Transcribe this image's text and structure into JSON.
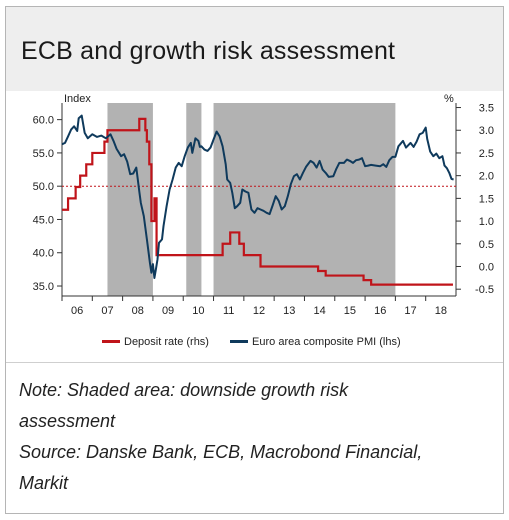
{
  "title": "ECB and growth risk assessment",
  "notes": {
    "line1": "Note: Shaded area: downside growth risk",
    "line2": "assessment",
    "line3": "Source: Danske Bank, ECB, Macrobond Financial,",
    "line4": "Markit"
  },
  "colors": {
    "deposit": "#c0141a",
    "pmi": "#0f3a5c",
    "shade": "#b2b2b2",
    "refline": "#c0141a"
  },
  "chart_data": {
    "type": "line",
    "x_unit": "year",
    "x_ticks": [
      "06",
      "07",
      "08",
      "09",
      "10",
      "11",
      "12",
      "13",
      "14",
      "15",
      "16",
      "17",
      "18"
    ],
    "left_axis": {
      "label": "Index",
      "ylim": [
        33.5,
        62.5
      ],
      "ticks": [
        "60.0",
        "55.0",
        "50.0",
        "45.0",
        "40.0",
        "35.0"
      ]
    },
    "right_axis": {
      "label": "%",
      "ylim": [
        -0.65,
        3.6
      ],
      "ticks": [
        "3.5",
        "3.0",
        "2.5",
        "2.0",
        "1.5",
        "1.0",
        "0.5",
        "0.0",
        "-0.5"
      ]
    },
    "reference_line": {
      "axis": "left",
      "value": 50
    },
    "shaded_periods": [
      [
        2007.5,
        2009.0
      ],
      [
        2010.1,
        2010.6
      ],
      [
        2011.0,
        2017.0
      ]
    ],
    "series": [
      {
        "name": "Deposit rate (rhs)",
        "axis": "right",
        "points": [
          [
            2006.0,
            1.25
          ],
          [
            2006.2,
            1.5
          ],
          [
            2006.45,
            1.75
          ],
          [
            2006.6,
            2.0
          ],
          [
            2006.8,
            2.25
          ],
          [
            2007.0,
            2.5
          ],
          [
            2007.4,
            2.75
          ],
          [
            2007.5,
            3.0
          ],
          [
            2008.55,
            3.25
          ],
          [
            2008.75,
            3.0
          ],
          [
            2008.8,
            2.75
          ],
          [
            2008.88,
            2.25
          ],
          [
            2008.95,
            1.0
          ],
          [
            2009.05,
            1.5
          ],
          [
            2009.12,
            0.25
          ],
          [
            2011.3,
            0.5
          ],
          [
            2011.55,
            0.75
          ],
          [
            2011.85,
            0.5
          ],
          [
            2012.0,
            0.25
          ],
          [
            2012.55,
            0.0
          ],
          [
            2014.45,
            -0.1
          ],
          [
            2014.7,
            -0.2
          ],
          [
            2015.95,
            -0.3
          ],
          [
            2016.2,
            -0.4
          ],
          [
            2018.9,
            -0.4
          ]
        ]
      },
      {
        "name": "Euro area composite PMI (lhs)",
        "axis": "left",
        "points": [
          [
            2006.0,
            56.3
          ],
          [
            2006.1,
            56.5
          ],
          [
            2006.2,
            57.5
          ],
          [
            2006.3,
            58.5
          ],
          [
            2006.4,
            59.0
          ],
          [
            2006.5,
            58.3
          ],
          [
            2006.55,
            60.2
          ],
          [
            2006.65,
            60.6
          ],
          [
            2006.75,
            58.0
          ],
          [
            2006.85,
            57.2
          ],
          [
            2007.0,
            57.8
          ],
          [
            2007.15,
            57.4
          ],
          [
            2007.3,
            57.6
          ],
          [
            2007.45,
            57.2
          ],
          [
            2007.6,
            57.8
          ],
          [
            2007.7,
            56.8
          ],
          [
            2007.8,
            55.6
          ],
          [
            2007.95,
            54.5
          ],
          [
            2008.05,
            54.8
          ],
          [
            2008.15,
            53.7
          ],
          [
            2008.25,
            51.8
          ],
          [
            2008.35,
            51.9
          ],
          [
            2008.45,
            52.8
          ],
          [
            2008.55,
            49.2
          ],
          [
            2008.6,
            47.5
          ],
          [
            2008.7,
            45.5
          ],
          [
            2008.8,
            42.0
          ],
          [
            2008.9,
            38.5
          ],
          [
            2008.95,
            37.0
          ],
          [
            2009.0,
            38.3
          ],
          [
            2009.05,
            36.2
          ],
          [
            2009.1,
            37.6
          ],
          [
            2009.15,
            39.0
          ],
          [
            2009.2,
            41.5
          ],
          [
            2009.3,
            42.0
          ],
          [
            2009.35,
            44.0
          ],
          [
            2009.45,
            47.0
          ],
          [
            2009.55,
            49.5
          ],
          [
            2009.65,
            51.0
          ],
          [
            2009.75,
            52.8
          ],
          [
            2009.85,
            53.5
          ],
          [
            2009.95,
            53.0
          ],
          [
            2010.05,
            54.5
          ],
          [
            2010.15,
            55.8
          ],
          [
            2010.25,
            56.5
          ],
          [
            2010.3,
            55.0
          ],
          [
            2010.4,
            57.2
          ],
          [
            2010.5,
            56.8
          ],
          [
            2010.55,
            55.9
          ],
          [
            2010.6,
            56.0
          ],
          [
            2010.7,
            55.5
          ],
          [
            2010.8,
            55.3
          ],
          [
            2010.9,
            55.8
          ],
          [
            2011.0,
            57.0
          ],
          [
            2011.1,
            58.2
          ],
          [
            2011.2,
            57.5
          ],
          [
            2011.3,
            56.0
          ],
          [
            2011.4,
            53.3
          ],
          [
            2011.45,
            51.0
          ],
          [
            2011.55,
            50.5
          ],
          [
            2011.62,
            49.0
          ],
          [
            2011.7,
            46.7
          ],
          [
            2011.78,
            47.0
          ],
          [
            2011.88,
            47.5
          ],
          [
            2011.95,
            49.5
          ],
          [
            2012.05,
            49.2
          ],
          [
            2012.15,
            49.0
          ],
          [
            2012.25,
            46.5
          ],
          [
            2012.35,
            46.0
          ],
          [
            2012.45,
            46.7
          ],
          [
            2012.55,
            46.5
          ],
          [
            2012.65,
            46.3
          ],
          [
            2012.75,
            46.0
          ],
          [
            2012.85,
            45.8
          ],
          [
            2012.95,
            47.1
          ],
          [
            2013.05,
            48.5
          ],
          [
            2013.15,
            47.8
          ],
          [
            2013.25,
            46.5
          ],
          [
            2013.35,
            47.0
          ],
          [
            2013.45,
            48.5
          ],
          [
            2013.55,
            50.3
          ],
          [
            2013.65,
            51.5
          ],
          [
            2013.75,
            51.8
          ],
          [
            2013.85,
            51.0
          ],
          [
            2013.95,
            52.0
          ],
          [
            2014.05,
            52.9
          ],
          [
            2014.2,
            53.8
          ],
          [
            2014.3,
            53.5
          ],
          [
            2014.4,
            52.8
          ],
          [
            2014.5,
            53.8
          ],
          [
            2014.6,
            52.5
          ],
          [
            2014.7,
            52.0
          ],
          [
            2014.8,
            51.4
          ],
          [
            2014.95,
            51.5
          ],
          [
            2015.05,
            52.6
          ],
          [
            2015.15,
            53.5
          ],
          [
            2015.3,
            53.5
          ],
          [
            2015.4,
            54.0
          ],
          [
            2015.5,
            53.8
          ],
          [
            2015.6,
            53.5
          ],
          [
            2015.7,
            53.9
          ],
          [
            2015.8,
            54.0
          ],
          [
            2015.9,
            54.2
          ],
          [
            2016.0,
            53.0
          ],
          [
            2016.1,
            53.1
          ],
          [
            2016.2,
            53.2
          ],
          [
            2016.35,
            53.1
          ],
          [
            2016.5,
            53.0
          ],
          [
            2016.6,
            53.3
          ],
          [
            2016.7,
            52.9
          ],
          [
            2016.8,
            53.9
          ],
          [
            2016.9,
            54.4
          ],
          [
            2017.0,
            54.4
          ],
          [
            2017.1,
            56.0
          ],
          [
            2017.25,
            56.8
          ],
          [
            2017.35,
            55.8
          ],
          [
            2017.5,
            56.5
          ],
          [
            2017.6,
            55.9
          ],
          [
            2017.7,
            56.7
          ],
          [
            2017.8,
            57.8
          ],
          [
            2017.9,
            58.0
          ],
          [
            2018.0,
            58.8
          ],
          [
            2018.05,
            57.1
          ],
          [
            2018.15,
            55.2
          ],
          [
            2018.25,
            54.5
          ],
          [
            2018.35,
            54.9
          ],
          [
            2018.45,
            54.2
          ],
          [
            2018.55,
            54.5
          ],
          [
            2018.62,
            53.1
          ],
          [
            2018.7,
            52.7
          ],
          [
            2018.78,
            52.0
          ],
          [
            2018.85,
            51.1
          ],
          [
            2018.92,
            51.0
          ]
        ]
      }
    ],
    "legend": "bottom"
  }
}
